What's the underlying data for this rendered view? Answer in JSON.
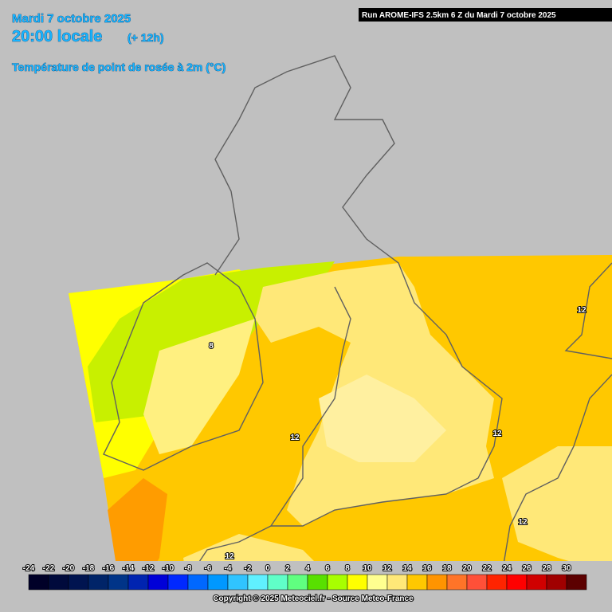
{
  "header": {
    "date": "Mardi 7 octobre 2025",
    "time": "20:00 locale",
    "offset": "(+ 12h)",
    "parameter": "Température de point de rosée à 2m (°C)",
    "run": "Run AROME-IFS 2.5km 6 Z du Mardi 7 octobre 2025"
  },
  "map": {
    "contour_labels": [
      12,
      8,
      12,
      12,
      12,
      12
    ]
  },
  "legend": {
    "labels": [
      -24,
      -22,
      -20,
      -18,
      -16,
      -14,
      -12,
      -10,
      -8,
      -6,
      -4,
      -2,
      0,
      2,
      4,
      6,
      8,
      10,
      12,
      14,
      16,
      18,
      20,
      22,
      24,
      26,
      28,
      30
    ],
    "colors": [
      "#000028",
      "#000a3c",
      "#001450",
      "#002468",
      "#003488",
      "#0024b0",
      "#0000d8",
      "#0028ff",
      "#0068ff",
      "#0098ff",
      "#30c4ff",
      "#60f0ff",
      "#60ffc8",
      "#60ff80",
      "#58e000",
      "#a8ff00",
      "#ffff00",
      "#ffff90",
      "#ffe878",
      "#ffc800",
      "#ff9400",
      "#ff7428",
      "#ff5038",
      "#ff2400",
      "#ff0000",
      "#d00000",
      "#a00000",
      "#5c0000"
    ]
  },
  "footer": {
    "copyright": "Copyright © 2025 Meteociel.fr - Source Meteo-France"
  }
}
